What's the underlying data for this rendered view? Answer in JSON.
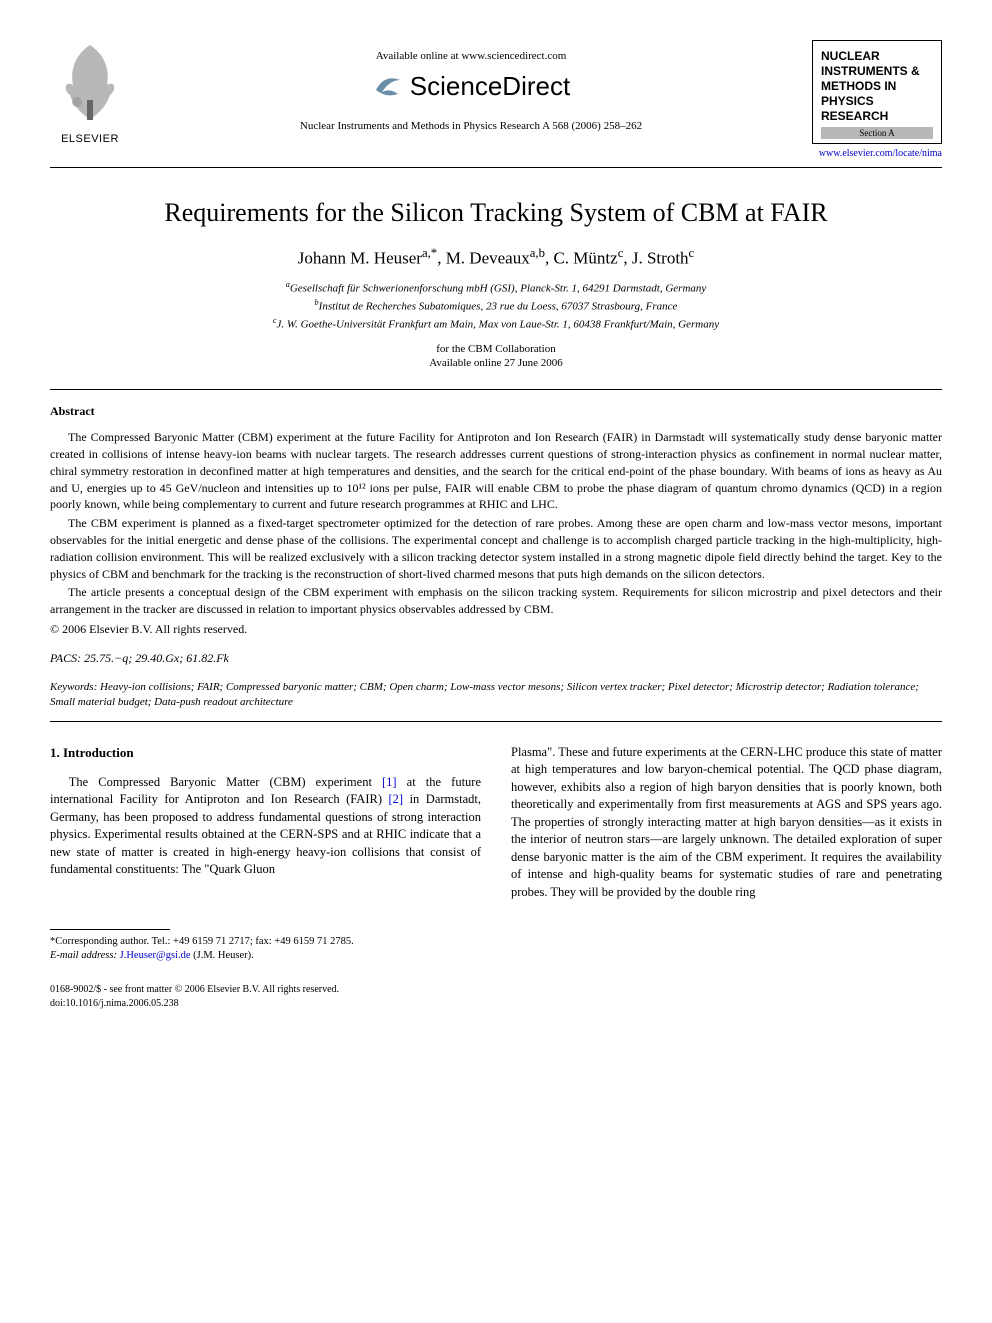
{
  "header": {
    "elsevier_label": "ELSEVIER",
    "available_online": "Available online at www.sciencedirect.com",
    "sciencedirect": "ScienceDirect",
    "journal_reference": "Nuclear Instruments and Methods in Physics Research A 568 (2006) 258–262",
    "journal_box_title": "NUCLEAR INSTRUMENTS & METHODS IN PHYSICS RESEARCH",
    "section_a": "Section A",
    "journal_link": "www.elsevier.com/locate/nima"
  },
  "title": "Requirements for the Silicon Tracking System of CBM at FAIR",
  "authors_html": "Johann M. Heuser<sup>a,*</sup>, M. Deveaux<sup>a,b</sup>, C. Müntz<sup>c</sup>, J. Stroth<sup>c</sup>",
  "affiliations": {
    "a": "Gesellschaft für Schwerionenforschung mbH (GSI), Planck-Str. 1, 64291 Darmstadt, Germany",
    "b": "Institut de Recherches Subatomiques, 23 rue du Loess, 67037 Strasbourg, France",
    "c": "J. W. Goethe-Universität Frankfurt am Main, Max von Laue-Str. 1, 60438 Frankfurt/Main, Germany"
  },
  "collaboration": "for the CBM Collaboration",
  "online_date": "Available online 27 June 2006",
  "abstract_heading": "Abstract",
  "abstract": {
    "p1": "The Compressed Baryonic Matter (CBM) experiment at the future Facility for Antiproton and Ion Research (FAIR) in Darmstadt will systematically study dense baryonic matter created in collisions of intense heavy-ion beams with nuclear targets. The research addresses current questions of strong-interaction physics as confinement in normal nuclear matter, chiral symmetry restoration in deconfined matter at high temperatures and densities, and the search for the critical end-point of the phase boundary. With beams of ions as heavy as Au and U, energies up to 45 GeV/nucleon and intensities up to 10¹² ions per pulse, FAIR will enable CBM to probe the phase diagram of quantum chromo dynamics (QCD) in a region poorly known, while being complementary to current and future research programmes at RHIC and LHC.",
    "p2": "The CBM experiment is planned as a fixed-target spectrometer optimized for the detection of rare probes. Among these are open charm and low-mass vector mesons, important observables for the initial energetic and dense phase of the collisions. The experimental concept and challenge is to accomplish charged particle tracking in the high-multiplicity, high-radiation collision environment. This will be realized exclusively with a silicon tracking detector system installed in a strong magnetic dipole field directly behind the target. Key to the physics of CBM and benchmark for the tracking is the reconstruction of short-lived charmed mesons that puts high demands on the silicon detectors.",
    "p3": "The article presents a conceptual design of the CBM experiment with emphasis on the silicon tracking system. Requirements for silicon microstrip and pixel detectors and their arrangement in the tracker are discussed in relation to important physics observables addressed by CBM."
  },
  "copyright": "© 2006 Elsevier B.V. All rights reserved.",
  "pacs_label": "PACS:",
  "pacs": "25.75.−q; 29.40.Gx; 61.82.Fk",
  "keywords_label": "Keywords:",
  "keywords": "Heavy-ion collisions; FAIR; Compressed baryonic matter; CBM; Open charm; Low-mass vector mesons; Silicon vertex tracker; Pixel detector; Microstrip detector; Radiation tolerance; Small material budget; Data-push readout architecture",
  "section1_heading": "1. Introduction",
  "body": {
    "col1": "The Compressed Baryonic Matter (CBM) experiment [1] at the future international Facility for Antiproton and Ion Research (FAIR) [2] in Darmstadt, Germany, has been proposed to address fundamental questions of strong interaction physics. Experimental results obtained at the CERN-SPS and at RHIC indicate that a new state of matter is created in high-energy heavy-ion collisions that consist of fundamental constituents: The \"Quark Gluon",
    "col2": "Plasma\". These and future experiments at the CERN-LHC produce this state of matter at high temperatures and low baryon-chemical potential. The QCD phase diagram, however, exhibits also a region of high baryon densities that is poorly known, both theoretically and experimentally from first measurements at AGS and SPS years ago. The properties of strongly interacting matter at high baryon densities—as it exists in the interior of neutron stars—are largely unknown. The detailed exploration of super dense baryonic matter is the aim of the CBM experiment. It requires the availability of intense and high-quality beams for systematic studies of rare and penetrating probes. They will be provided by the double ring"
  },
  "footnote": {
    "corresponding": "*Corresponding author. Tel.: +49 6159 71 2717; fax: +49 6159 71 2785.",
    "email_label": "E-mail address:",
    "email": "J.Heuser@gsi.de",
    "email_name": "(J.M. Heuser)."
  },
  "footer": {
    "line1": "0168-9002/$ - see front matter © 2006 Elsevier B.V. All rights reserved.",
    "line2": "doi:10.1016/j.nima.2006.05.238"
  },
  "colors": {
    "link": "#0000cc",
    "text": "#000000",
    "section_a_bg": "#b8b8b8",
    "sd_swoosh": "#6b8ea8"
  }
}
